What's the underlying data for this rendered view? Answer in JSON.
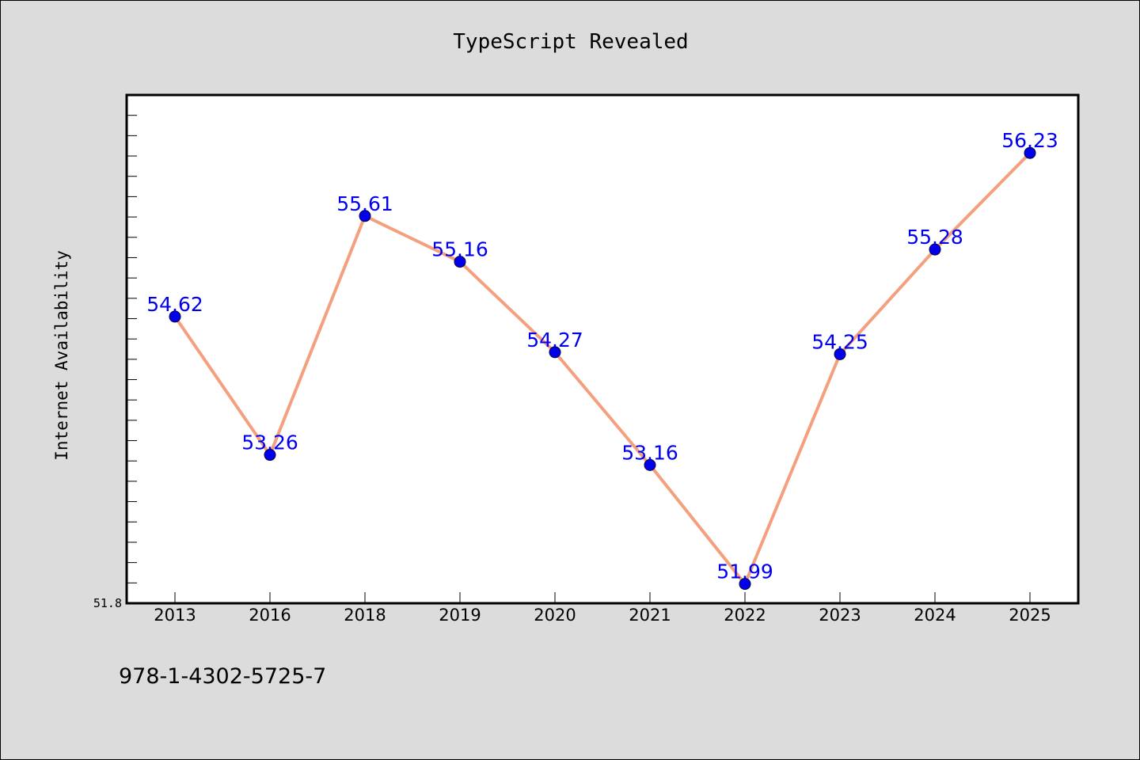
{
  "chart_data": {
    "type": "line",
    "title": "TypeScript Revealed",
    "xlabel": "",
    "ylabel": "Internet Availability",
    "categories": [
      "2013",
      "2016",
      "2018",
      "2019",
      "2020",
      "2021",
      "2022",
      "2023",
      "2024",
      "2025"
    ],
    "series": [
      {
        "values": [
          54.62,
          53.26,
          55.61,
          55.16,
          54.27,
          53.16,
          51.99,
          54.25,
          55.28,
          56.23
        ],
        "line_color": "#f4a07e",
        "marker_color": "#0000ee"
      }
    ],
    "data_labels": [
      "54.62",
      "53.26",
      "55.61",
      "55.16",
      "54.27",
      "53.16",
      "51.99",
      "54.25",
      "55.28",
      "56.23"
    ],
    "ylim": [
      51.8,
      56.8
    ],
    "y_min_label": "51.8",
    "grid": false,
    "legend": "none",
    "label_color": "#0000ee"
  },
  "footer": {
    "isbn": "978-1-4302-5725-7"
  }
}
